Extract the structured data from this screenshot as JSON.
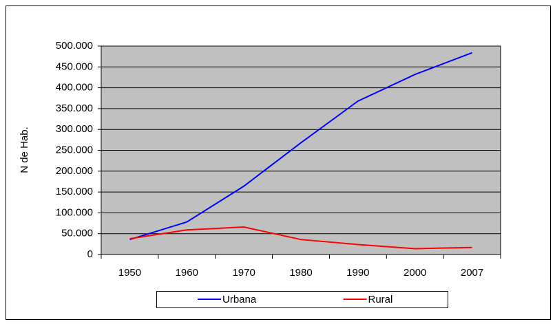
{
  "chart_data": {
    "type": "line",
    "y_label": "N de Hab.",
    "categories": [
      "1950",
      "1960",
      "1970",
      "1980",
      "1990",
      "2000",
      "2007"
    ],
    "series": [
      {
        "name": "Urbana",
        "color": "#0000ff",
        "values": [
          36000,
          78000,
          164000,
          268000,
          368000,
          432000,
          484000
        ]
      },
      {
        "name": "Rural",
        "color": "#ff0000",
        "values": [
          38000,
          59000,
          66000,
          36000,
          24000,
          14000,
          17000
        ]
      }
    ],
    "ylim": [
      0,
      500000
    ],
    "yticks": [
      0,
      {
        "value": 50000,
        "label": "50.000"
      },
      {
        "value": 100000,
        "label": "100.000"
      },
      {
        "value": 150000,
        "label": "150.000"
      },
      {
        "value": 200000,
        "label": "200.000"
      },
      {
        "value": 250000,
        "label": "250.000"
      },
      {
        "value": 300000,
        "label": "300.000"
      },
      {
        "value": 350000,
        "label": "350.000"
      },
      {
        "value": 400000,
        "label": "400.000"
      },
      {
        "value": 450000,
        "label": "450.000"
      },
      {
        "value": 500000,
        "label": "500.000"
      }
    ],
    "grid": true,
    "plot_background": "#c0c0c0",
    "legend": "bottom"
  }
}
